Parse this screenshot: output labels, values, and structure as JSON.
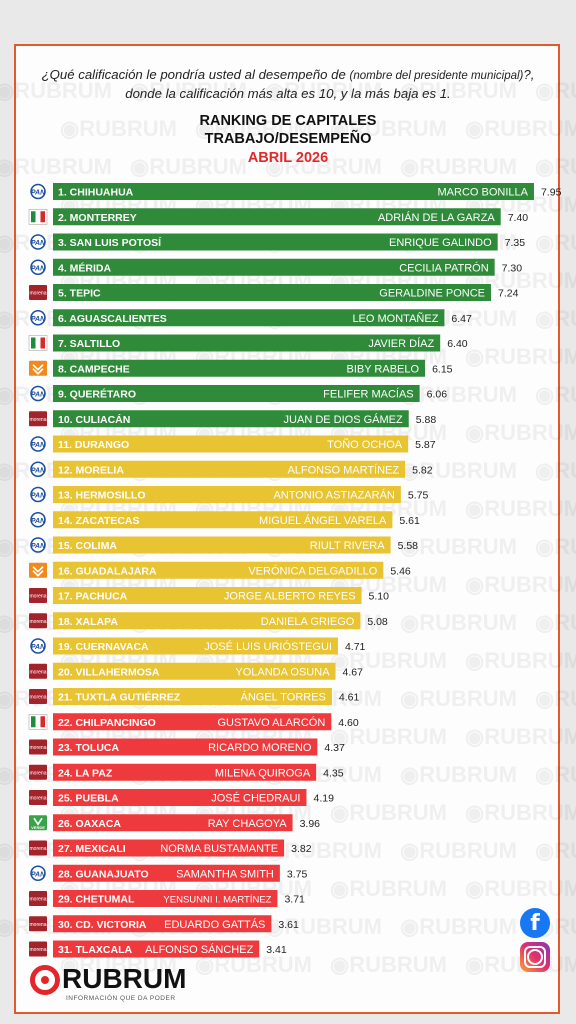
{
  "header": {
    "question_part1": "¿Qué calificación le pondría usted al desempeño de",
    "question_paren": "(nombre del presidente municipal)",
    "question_part2": "?, donde la calificación más alta es 10, y la más baja es 1.",
    "title_line1": "RANKING DE CAPITALES",
    "title_line2": "TRABAJO/DESEMPEÑO",
    "period": "ABRIL 2026"
  },
  "watermark": "RUBRUM",
  "footer": {
    "brand": "RUBRUM",
    "tagline": "INFORMACIÓN QUE DA PODER",
    "facebook_icon": "facebook-icon",
    "instagram_icon": "instagram-icon"
  },
  "colors": {
    "green": "#2f8b3a",
    "yellow": "#e8c332",
    "red": "#ee3a3d",
    "frame": "#e25a2b",
    "accent_red": "#e02a2a"
  },
  "chart_data": {
    "type": "bar",
    "orientation": "horizontal",
    "xlim": [
      0,
      10
    ],
    "party_icons": {
      "PAN": "pan-logo-icon",
      "PRI": "pri-logo-icon",
      "MORENA": "morena-logo-icon",
      "MC": "mc-logo-icon",
      "VERDE": "pvem-logo-icon"
    },
    "party_labels": {
      "PAN": "PAN",
      "MORENA": "morena",
      "VERDE": "VERDE"
    },
    "rows": [
      {
        "rank": "1. CHIHUAHUA",
        "mayor": "MARCO BONILLA",
        "value": 7.95,
        "label": "7.95",
        "party": "PAN",
        "color": "green"
      },
      {
        "rank": "2. MONTERREY",
        "mayor": "ADRIÁN DE LA GARZA",
        "value": 7.4,
        "label": "7.40",
        "party": "PRI",
        "color": "green"
      },
      {
        "rank": "3. SAN LUIS POTOSÍ",
        "mayor": "ENRIQUE GALINDO",
        "value": 7.35,
        "label": "7.35",
        "party": "PAN",
        "color": "green"
      },
      {
        "rank": "4. MÉRIDA",
        "mayor": "CECILIA PATRÓN",
        "value": 7.3,
        "label": "7.30",
        "party": "PAN",
        "color": "green"
      },
      {
        "rank": "5. TEPIC",
        "mayor": "GERALDINE PONCE",
        "value": 7.24,
        "label": "7.24",
        "party": "MORENA",
        "color": "green"
      },
      {
        "rank": "6. AGUASCALIENTES",
        "mayor": "LEO MONTAÑEZ",
        "value": 6.47,
        "label": "6.47",
        "party": "PAN",
        "color": "green"
      },
      {
        "rank": "7. SALTILLO",
        "mayor": "JAVIER DÍAZ",
        "value": 6.4,
        "label": "6.40",
        "party": "PRI",
        "color": "green"
      },
      {
        "rank": "8. CAMPECHE",
        "mayor": "BIBY RABELO",
        "value": 6.15,
        "label": "6.15",
        "party": "MC",
        "color": "green"
      },
      {
        "rank": "9. QUERÉTARO",
        "mayor": "FELIFER MACÍAS",
        "value": 6.06,
        "label": "6.06",
        "party": "PAN",
        "color": "green"
      },
      {
        "rank": "10. CULIACÁN",
        "mayor": "JUAN DE DIOS GÁMEZ",
        "value": 5.88,
        "label": "5.88",
        "party": "MORENA",
        "color": "green"
      },
      {
        "rank": "11. DURANGO",
        "mayor": "TOÑO OCHOA",
        "value": 5.87,
        "label": "5.87",
        "party": "PAN",
        "color": "yellow"
      },
      {
        "rank": "12. MORELIA",
        "mayor": "ALFONSO MARTÍNEZ",
        "value": 5.82,
        "label": "5.82",
        "party": "PAN",
        "color": "yellow"
      },
      {
        "rank": "13. HERMOSILLO",
        "mayor": "ANTONIO ASTIAZARÁN",
        "value": 5.75,
        "label": "5.75",
        "party": "PAN",
        "color": "yellow"
      },
      {
        "rank": "14. ZACATECAS",
        "mayor": "MIGUEL ÁNGEL VARELA",
        "value": 5.61,
        "label": "5.61",
        "party": "PAN",
        "color": "yellow"
      },
      {
        "rank": "15. COLIMA",
        "mayor": "RIULT RIVERA",
        "value": 5.58,
        "label": "5.58",
        "party": "PAN",
        "color": "yellow"
      },
      {
        "rank": "16. GUADALAJARA",
        "mayor": "VERÓNICA DELGADILLO",
        "value": 5.46,
        "label": "5.46",
        "party": "MC",
        "color": "yellow"
      },
      {
        "rank": "17. PACHUCA",
        "mayor": "JORGE ALBERTO REYES",
        "value": 5.1,
        "label": "5.10",
        "party": "MORENA",
        "color": "yellow"
      },
      {
        "rank": "18. XALAPA",
        "mayor": "DANIELA GRIEGO",
        "value": 5.08,
        "label": "5.08",
        "party": "MORENA",
        "color": "yellow"
      },
      {
        "rank": "19. CUERNAVACA",
        "mayor": "JOSÉ LUIS URIÓSTEGUI",
        "value": 4.71,
        "label": "4.71",
        "party": "PAN",
        "color": "yellow"
      },
      {
        "rank": "20. VILLAHERMOSA",
        "mayor": "YOLANDA OSUNA",
        "value": 4.67,
        "label": "4.67",
        "party": "MORENA",
        "color": "yellow"
      },
      {
        "rank": "21. TUXTLA GUTIÉRREZ",
        "mayor": "ÁNGEL TORRES",
        "value": 4.61,
        "label": "4.61",
        "party": "MORENA",
        "color": "yellow"
      },
      {
        "rank": "22. CHILPANCINGO",
        "mayor": "GUSTAVO ALARCÓN",
        "value": 4.6,
        "label": "4.60",
        "party": "PRI",
        "color": "red"
      },
      {
        "rank": "23. TOLUCA",
        "mayor": "RICARDO MORENO",
        "value": 4.37,
        "label": "4.37",
        "party": "MORENA",
        "color": "red"
      },
      {
        "rank": "24. LA PAZ",
        "mayor": "MILENA QUIROGA",
        "value": 4.35,
        "label": "4.35",
        "party": "MORENA",
        "color": "red"
      },
      {
        "rank": "25. PUEBLA",
        "mayor": "JOSÉ CHEDRAUI",
        "value": 4.19,
        "label": "4.19",
        "party": "MORENA",
        "color": "red"
      },
      {
        "rank": "26. OAXACA",
        "mayor": "RAY CHAGOYA",
        "value": 3.96,
        "label": "3.96",
        "party": "VERDE",
        "color": "red"
      },
      {
        "rank": "27. MEXICALI",
        "mayor": "NORMA BUSTAMANTE",
        "value": 3.82,
        "label": "3.82",
        "party": "MORENA",
        "color": "red"
      },
      {
        "rank": "28. GUANAJUATO",
        "mayor": "SAMANTHA SMITH",
        "value": 3.75,
        "label": "3.75",
        "party": "PAN",
        "color": "red"
      },
      {
        "rank": "29. CHETUMAL",
        "mayor": "YENSUNNI I. MARTÍNEZ",
        "value": 3.71,
        "label": "3.71",
        "party": "MORENA",
        "color": "red"
      },
      {
        "rank": "30. CD. VICTORIA",
        "mayor": "EDUARDO GATTÁS",
        "value": 3.61,
        "label": "3.61",
        "party": "MORENA",
        "color": "red"
      },
      {
        "rank": "31. TLAXCALA",
        "mayor": "ALFONSO SÁNCHEZ",
        "value": 3.41,
        "label": "3.41",
        "party": "MORENA",
        "color": "red"
      }
    ]
  }
}
